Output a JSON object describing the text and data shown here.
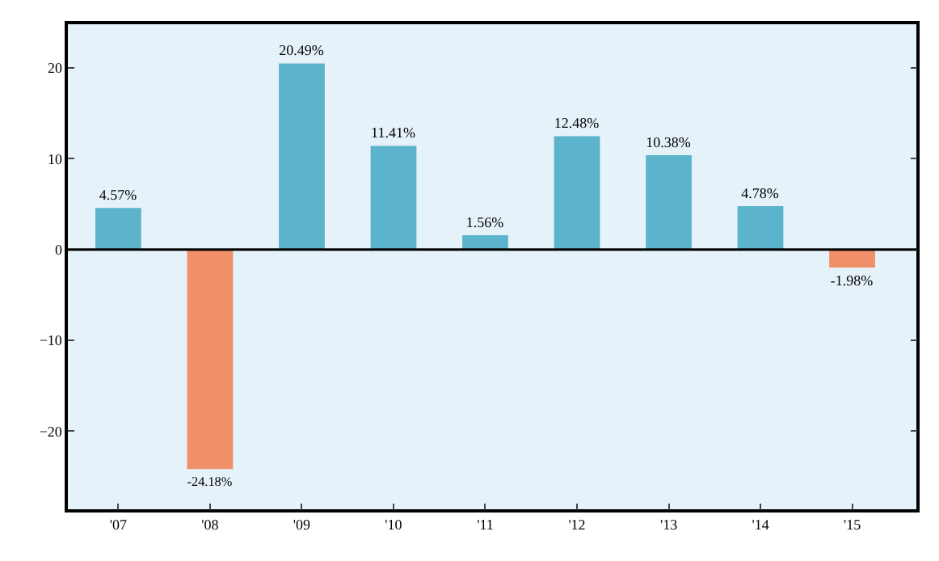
{
  "chart_data": {
    "type": "bar",
    "categories": [
      "'07",
      "'08",
      "'09",
      "'10",
      "'11",
      "'12",
      "'13",
      "'14",
      "'15"
    ],
    "values": [
      4.57,
      -24.18,
      20.49,
      11.41,
      1.56,
      12.48,
      10.38,
      4.78,
      -1.98
    ],
    "colors": [
      "#5cb3cc",
      "#f0906a",
      "#5cb3cc",
      "#5cb3cc",
      "#5cb3cc",
      "#5cb3cc",
      "#5cb3cc",
      "#5cb3cc",
      "#f0906a"
    ],
    "value_labels": [
      "4.57%",
      "-24.18%",
      "20.49%",
      "11.41%",
      "1.56%",
      "12.48%",
      "10.38%",
      "4.78%",
      "-1.98%"
    ],
    "ylim": [
      -28.6,
      24.8
    ],
    "yticks": [
      {
        "value": -20,
        "label": "−20"
      },
      {
        "value": -10,
        "label": "−10"
      },
      0,
      10,
      20
    ],
    "ref_lines": [
      {
        "axis": "y",
        "value": 0,
        "color": "#000000"
      }
    ],
    "grid": false,
    "legend": false
  }
}
